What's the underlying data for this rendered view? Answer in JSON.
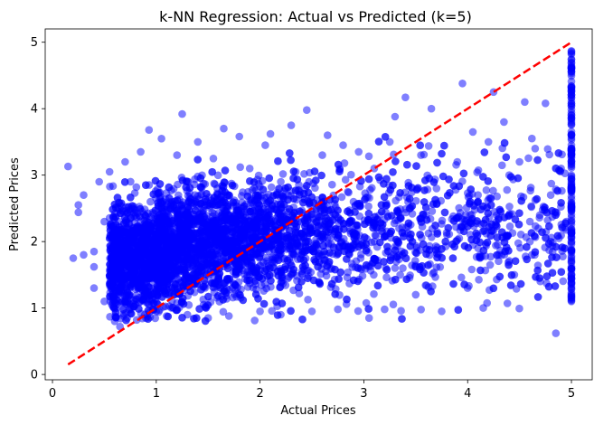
{
  "chart_data": {
    "type": "scatter",
    "title": "k-NN Regression: Actual vs Predicted (k=5)",
    "xlabel": "Actual Prices",
    "ylabel": "Predicted Prices",
    "xlim": [
      -0.07,
      5.2
    ],
    "ylim": [
      -0.08,
      5.2
    ],
    "xticks": [
      0,
      1,
      2,
      3,
      4,
      5
    ],
    "yticks": [
      0,
      1,
      2,
      3,
      4,
      5
    ],
    "grid": false,
    "legend": "none",
    "point_color": "#0000ff",
    "point_alpha": 0.5,
    "reference_line": {
      "from": [
        0.15,
        0.15
      ],
      "to": [
        5.0,
        5.0
      ],
      "color": "#ff0000",
      "style": "dashed",
      "label": ""
    },
    "series": [
      {
        "points": [
          [
            0.15,
            3.13
          ],
          [
            0.2,
            1.75
          ],
          [
            0.25,
            2.55
          ],
          [
            0.25,
            2.44
          ],
          [
            0.3,
            2.7
          ],
          [
            0.3,
            1.8
          ],
          [
            0.4,
            1.85
          ],
          [
            0.4,
            1.62
          ],
          [
            0.4,
            1.3
          ],
          [
            0.45,
            2.9
          ],
          [
            0.5,
            2.3
          ],
          [
            0.5,
            1.1
          ],
          [
            0.55,
            3.05
          ],
          [
            0.6,
            0.8
          ],
          [
            0.65,
            0.72
          ],
          [
            0.7,
            3.2
          ],
          [
            0.75,
            0.92
          ],
          [
            0.8,
            1.05
          ],
          [
            0.85,
            3.35
          ],
          [
            0.9,
            0.85
          ],
          [
            0.93,
            3.68
          ],
          [
            1.0,
            0.95
          ],
          [
            1.05,
            3.55
          ],
          [
            1.1,
            0.88
          ],
          [
            1.2,
            3.3
          ],
          [
            1.25,
            3.92
          ],
          [
            1.3,
            0.9
          ],
          [
            1.4,
            3.5
          ],
          [
            1.5,
            0.85
          ],
          [
            1.55,
            3.25
          ],
          [
            1.65,
            3.7
          ],
          [
            1.7,
            0.88
          ],
          [
            1.8,
            3.58
          ],
          [
            1.9,
            3.1
          ],
          [
            2.0,
            0.95
          ],
          [
            2.05,
            3.45
          ],
          [
            2.1,
            3.62
          ],
          [
            2.2,
            0.9
          ],
          [
            2.3,
            3.75
          ],
          [
            2.45,
            3.98
          ],
          [
            2.5,
            0.95
          ],
          [
            2.6,
            3.3
          ],
          [
            2.65,
            3.6
          ],
          [
            2.75,
            0.98
          ],
          [
            2.8,
            3.45
          ],
          [
            2.95,
            3.35
          ],
          [
            3.05,
            0.85
          ],
          [
            3.1,
            3.1
          ],
          [
            3.2,
            0.98
          ],
          [
            3.25,
            3.5
          ],
          [
            3.3,
            3.88
          ],
          [
            3.35,
            1.5
          ],
          [
            3.4,
            4.17
          ],
          [
            3.5,
            1.2
          ],
          [
            3.55,
            3.3
          ],
          [
            3.65,
            4.0
          ],
          [
            3.75,
            0.95
          ],
          [
            3.8,
            2.1
          ],
          [
            3.9,
            3.2
          ],
          [
            3.95,
            4.38
          ],
          [
            4.0,
            1.3
          ],
          [
            4.05,
            3.65
          ],
          [
            4.1,
            2.7
          ],
          [
            4.15,
            1.0
          ],
          [
            4.2,
            3.5
          ],
          [
            4.25,
            4.25
          ],
          [
            4.3,
            1.8
          ],
          [
            4.35,
            3.8
          ],
          [
            4.4,
            2.4
          ],
          [
            4.45,
            1.5
          ],
          [
            4.5,
            3.2
          ],
          [
            4.55,
            4.1
          ],
          [
            4.6,
            2.0
          ],
          [
            4.65,
            3.4
          ],
          [
            4.7,
            1.4
          ],
          [
            4.75,
            4.08
          ],
          [
            4.8,
            2.7
          ],
          [
            4.85,
            0.62
          ],
          [
            4.9,
            3.1
          ],
          [
            4.95,
            2.3
          ],
          [
            1.3,
            2.5
          ],
          [
            2.4,
            2.0
          ],
          [
            3.6,
            2.4
          ],
          [
            4.6,
            2.3
          ],
          [
            0.6,
            2.0
          ],
          [
            1.9,
            1.5
          ],
          [
            2.9,
            2.6
          ],
          [
            3.3,
            1.6
          ],
          [
            4.1,
            1.9
          ],
          [
            4.4,
            3.0
          ],
          [
            1.0,
            1.2
          ],
          [
            2.2,
            2.9
          ],
          [
            3.1,
            2.0
          ],
          [
            3.7,
            2.8
          ],
          [
            4.8,
            2.0
          ]
        ]
      }
    ],
    "dense_cloud": {
      "x_range": [
        0.55,
        4.95
      ],
      "y_center_at_x": [
        [
          0.6,
          1.7
        ],
        [
          1.5,
          2.0
        ],
        [
          2.5,
          2.1
        ],
        [
          3.5,
          2.2
        ],
        [
          4.5,
          2.2
        ]
      ],
      "points_visible": 5000
    },
    "capped_column": {
      "x": 5.0,
      "y_range": [
        1.1,
        4.9
      ]
    }
  }
}
